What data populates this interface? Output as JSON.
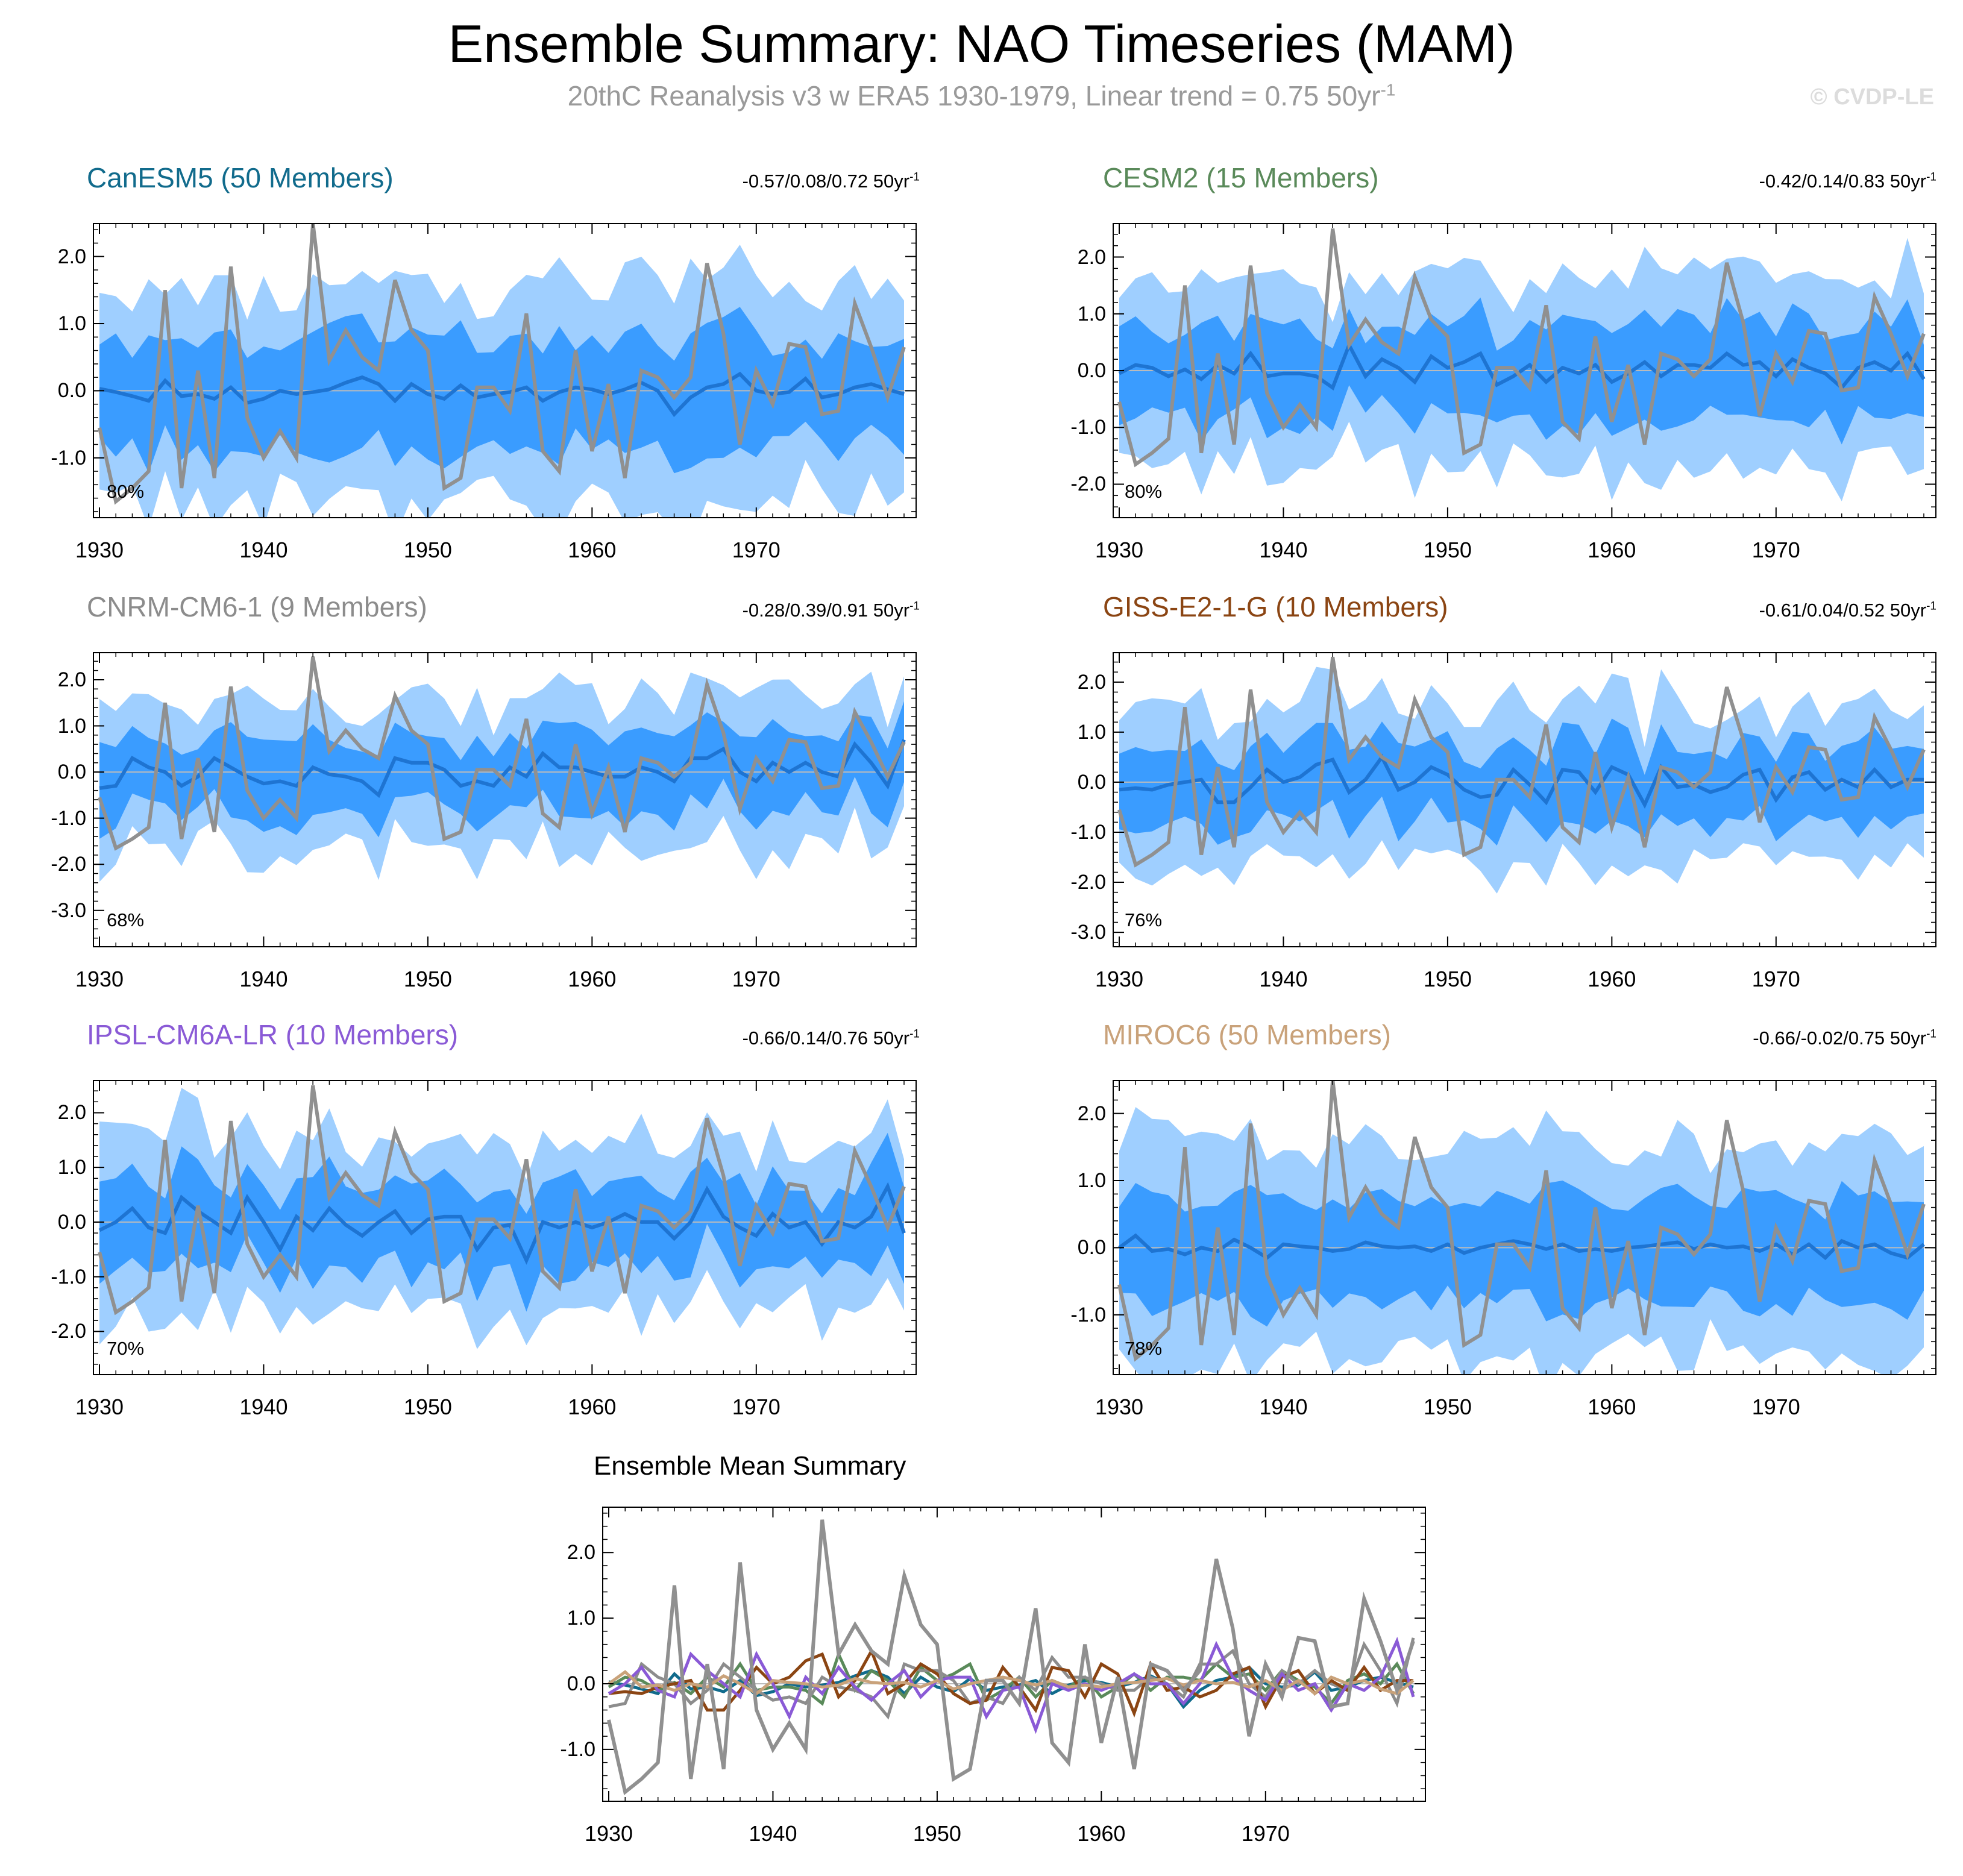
{
  "header": {
    "title": "Ensemble Summary: NAO Timeseries (MAM)",
    "subtitle_main": "20thC Reanalysis v3 w ERA5 1930-1979, Linear trend = 0.75 50yr",
    "subtitle_sup": "-1",
    "watermark": "© CVDP-LE"
  },
  "colors": {
    "band_outer": "#9fcfff",
    "band_inner": "#3a9cff",
    "ens_mean": "#1e74d2",
    "obs": "#909090",
    "zero_line": "#bbbbbb"
  },
  "chart_data": [
    {
      "type": "area",
      "title": "CanESM5 (50 Members)",
      "title_color": "#116b8c",
      "trend_text": "-0.57/0.08/0.72 50yr",
      "trend_sup": "-1",
      "percent_label": "80%",
      "x_start": 1930,
      "x_end": 1979,
      "xticks": [
        1930,
        1940,
        1950,
        1960,
        1970
      ],
      "ylim": [
        -1.9,
        2.5
      ],
      "yticks": [
        -1.0,
        0.0,
        1.0,
        2.0
      ],
      "ytick_labels": [
        "-1.0",
        "0.0",
        "1.0",
        "2.0"
      ],
      "ens_mean": [
        0.03,
        -0.02,
        -0.08,
        -0.15,
        0.15,
        -0.08,
        -0.05,
        -0.12,
        0.05,
        -0.18,
        -0.12,
        0.0,
        -0.05,
        -0.02,
        0.02,
        0.12,
        0.2,
        0.1,
        -0.15,
        0.1,
        -0.05,
        -0.12,
        0.08,
        -0.1,
        -0.05,
        -0.02,
        0.05,
        -0.15,
        -0.02,
        0.05,
        0.02,
        -0.05,
        0.02,
        0.12,
        0.0,
        -0.35,
        -0.1,
        0.05,
        0.1,
        0.25,
        0.0,
        -0.05,
        -0.02,
        0.18,
        -0.1,
        -0.05,
        0.05,
        0.1,
        0.02,
        -0.05
      ]
    },
    {
      "type": "area",
      "title": "CESM2 (15 Members)",
      "title_color": "#5a8a5a",
      "trend_text": "-0.42/0.14/0.83 50yr",
      "trend_sup": "-1",
      "percent_label": "80%",
      "x_start": 1930,
      "x_end": 1979,
      "xticks": [
        1930,
        1940,
        1950,
        1960,
        1970
      ],
      "ylim": [
        -2.6,
        2.6
      ],
      "yticks": [
        -2.0,
        -1.0,
        0.0,
        1.0,
        2.0
      ],
      "ytick_labels": [
        "-2.0",
        "-1.0",
        "0.0",
        "1.0",
        "2.0"
      ],
      "ens_mean": [
        -0.05,
        0.1,
        0.05,
        -0.1,
        0.02,
        -0.15,
        0.1,
        -0.05,
        0.3,
        -0.1,
        -0.05,
        -0.05,
        -0.1,
        -0.3,
        0.45,
        -0.1,
        0.2,
        0.05,
        -0.2,
        0.25,
        0.05,
        0.15,
        0.3,
        -0.25,
        -0.1,
        0.1,
        -0.2,
        0.05,
        -0.05,
        0.1,
        -0.2,
        -0.05,
        0.15,
        -0.1,
        0.1,
        0.1,
        0.05,
        0.3,
        0.1,
        0.15,
        -0.1,
        0.2,
        0.05,
        -0.05,
        -0.3,
        0.05,
        0.15,
        0.0,
        0.3,
        -0.15
      ]
    },
    {
      "type": "area",
      "title": "CNRM-CM6-1 (9 Members)",
      "title_color": "#8c8c8c",
      "trend_text": "-0.28/0.39/0.91 50yr",
      "trend_sup": "-1",
      "percent_label": "68%",
      "x_start": 1930,
      "x_end": 1979,
      "xticks": [
        1930,
        1940,
        1950,
        1960,
        1970
      ],
      "ylim": [
        -3.8,
        2.6
      ],
      "yticks": [
        -3.0,
        -2.0,
        -1.0,
        0.0,
        1.0,
        2.0
      ],
      "ytick_labels": [
        "-3.0",
        "-2.0",
        "-1.0",
        "0.0",
        "1.0",
        "2.0"
      ],
      "ens_mean": [
        -0.35,
        -0.3,
        0.3,
        0.1,
        0.0,
        -0.3,
        -0.1,
        0.3,
        0.1,
        -0.1,
        -0.25,
        -0.2,
        -0.3,
        0.1,
        -0.05,
        -0.1,
        -0.2,
        -0.5,
        0.3,
        0.2,
        0.2,
        0.05,
        -0.3,
        -0.2,
        -0.3,
        0.1,
        -0.1,
        0.4,
        0.1,
        0.1,
        0.0,
        -0.1,
        -0.1,
        0.1,
        0.0,
        -0.2,
        0.3,
        0.3,
        0.5,
        0.0,
        -0.2,
        0.2,
        0.0,
        0.2,
        0.0,
        -0.1,
        0.6,
        0.2,
        -0.3,
        0.7
      ]
    },
    {
      "type": "area",
      "title": "GISS-E2-1-G (10 Members)",
      "title_color": "#8b4513",
      "trend_text": "-0.61/0.04/0.52 50yr",
      "trend_sup": "-1",
      "percent_label": "76%",
      "x_start": 1930,
      "x_end": 1979,
      "xticks": [
        1930,
        1940,
        1950,
        1960,
        1970
      ],
      "ylim": [
        -3.3,
        2.6
      ],
      "yticks": [
        -3.0,
        -2.0,
        -1.0,
        0.0,
        1.0,
        2.0
      ],
      "ytick_labels": [
        "-3.0",
        "-2.0",
        "-1.0",
        "0.0",
        "1.0",
        "2.0"
      ],
      "ens_mean": [
        -0.15,
        -0.12,
        -0.15,
        -0.05,
        0.0,
        0.05,
        -0.4,
        -0.4,
        -0.1,
        0.25,
        0.0,
        0.1,
        0.35,
        0.45,
        -0.2,
        0.05,
        0.5,
        -0.15,
        0.0,
        0.3,
        0.15,
        -0.15,
        -0.3,
        -0.25,
        0.25,
        -0.05,
        -0.4,
        0.25,
        0.2,
        -0.2,
        0.3,
        0.15,
        -0.45,
        0.3,
        -0.1,
        -0.05,
        -0.2,
        -0.1,
        0.15,
        0.25,
        -0.35,
        0.1,
        0.2,
        -0.15,
        0.05,
        -0.1,
        0.25,
        -0.1,
        0.05,
        0.05
      ]
    },
    {
      "type": "area",
      "title": "IPSL-CM6A-LR (10 Members)",
      "title_color": "#8a5ad6",
      "trend_text": "-0.66/0.14/0.76 50yr",
      "trend_sup": "-1",
      "percent_label": "70%",
      "x_start": 1930,
      "x_end": 1979,
      "xticks": [
        1930,
        1940,
        1950,
        1960,
        1970
      ],
      "ylim": [
        -2.8,
        2.6
      ],
      "yticks": [
        -2.0,
        -1.0,
        0.0,
        1.0,
        2.0
      ],
      "ytick_labels": [
        "-2.0",
        "-1.0",
        "0.0",
        "1.0",
        "2.0"
      ],
      "ens_mean": [
        -0.15,
        0.0,
        0.25,
        -0.1,
        -0.2,
        0.45,
        0.2,
        0.0,
        -0.2,
        0.45,
        0.0,
        -0.5,
        0.1,
        -0.15,
        0.25,
        -0.05,
        -0.25,
        0.0,
        0.2,
        -0.2,
        0.05,
        0.1,
        0.1,
        -0.5,
        -0.1,
        -0.05,
        -0.7,
        0.0,
        -0.1,
        0.0,
        -0.1,
        0.0,
        0.15,
        0.0,
        0.0,
        -0.3,
        0.0,
        0.6,
        0.1,
        -0.1,
        -0.25,
        0.15,
        -0.1,
        0.0,
        -0.4,
        0.0,
        -0.1,
        0.1,
        0.65,
        -0.2
      ]
    },
    {
      "type": "area",
      "title": "MIROC6 (50 Members)",
      "title_color": "#c9a27a",
      "trend_text": "-0.66/-0.02/0.75 50yr",
      "trend_sup": "-1",
      "percent_label": "78%",
      "x_start": 1930,
      "x_end": 1979,
      "xticks": [
        1930,
        1940,
        1950,
        1960,
        1970
      ],
      "ylim": [
        -1.9,
        2.5
      ],
      "yticks": [
        -1.0,
        0.0,
        1.0,
        2.0
      ],
      "ytick_labels": [
        "-1.0",
        "0.0",
        "1.0",
        "2.0"
      ],
      "ens_mean": [
        0.0,
        0.18,
        -0.05,
        -0.02,
        -0.1,
        0.0,
        -0.05,
        0.12,
        0.0,
        -0.15,
        0.05,
        0.02,
        0.0,
        -0.05,
        -0.02,
        0.08,
        0.02,
        0.0,
        0.02,
        -0.05,
        0.05,
        -0.08,
        0.0,
        0.05,
        0.1,
        0.05,
        -0.02,
        0.05,
        -0.05,
        -0.02,
        -0.05,
        0.0,
        0.02,
        0.05,
        0.08,
        -0.02,
        0.05,
        0.0,
        0.02,
        -0.05,
        0.05,
        -0.1,
        0.05,
        -0.15,
        0.1,
        0.0,
        0.05,
        -0.08,
        -0.15,
        0.05
      ]
    },
    {
      "type": "line",
      "title": "Ensemble Mean Summary",
      "x_start": 1930,
      "x_end": 1979,
      "xticks": [
        1930,
        1940,
        1950,
        1960,
        1970
      ],
      "ylim": [
        -1.8,
        2.7
      ],
      "yticks": [
        -1.0,
        0.0,
        1.0,
        2.0
      ],
      "ytick_labels": [
        "-1.0",
        "0.0",
        "1.0",
        "2.0"
      ],
      "series": [
        {
          "name": "CanESM5",
          "color": "#116b8c"
        },
        {
          "name": "CESM2",
          "color": "#5a8a5a"
        },
        {
          "name": "CNRM-CM6-1",
          "color": "#8c8c8c"
        },
        {
          "name": "GISS-E2-1-G",
          "color": "#8b4513"
        },
        {
          "name": "IPSL-CM6A-LR",
          "color": "#8a5ad6"
        },
        {
          "name": "MIROC6",
          "color": "#c9a27a"
        }
      ]
    }
  ],
  "observed": {
    "name": "20thC Reanalysis v3 w ERA5",
    "x_start": 1930,
    "values": [
      -0.55,
      -1.65,
      -1.45,
      -1.2,
      1.5,
      -1.45,
      0.3,
      -1.3,
      1.85,
      -0.4,
      -1.0,
      -0.6,
      -1.0,
      2.5,
      0.45,
      0.9,
      0.5,
      0.3,
      1.65,
      0.9,
      0.6,
      -1.45,
      -1.3,
      0.05,
      0.05,
      -0.3,
      1.15,
      -0.9,
      -1.2,
      0.6,
      -0.9,
      0.1,
      -1.3,
      0.3,
      0.2,
      -0.1,
      0.2,
      1.9,
      0.85,
      -0.8,
      0.3,
      -0.2,
      0.7,
      0.65,
      -0.35,
      -0.3,
      1.3,
      0.65,
      -0.1,
      0.65
    ]
  }
}
